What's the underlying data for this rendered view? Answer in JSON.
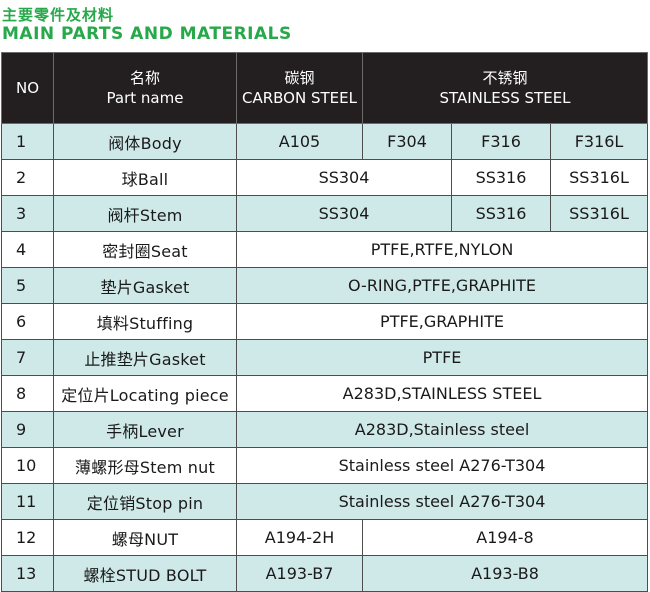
{
  "title_cn": "主要零件及材料",
  "title_en": "MAIN PARTS AND MATERIALS",
  "colors": {
    "title": "#27a84a",
    "header_bg": "#231f20",
    "row_alt": "#cfe9e9",
    "row_plain": "#ffffff"
  },
  "header": {
    "no": "NO",
    "name_cn": "名称",
    "name_en": "Part name",
    "carbon_cn": "碳钢",
    "carbon_en": "CARBON STEEL",
    "stainless_cn": "不锈钢",
    "stainless_en": "STAINLESS STEEL"
  },
  "rows": [
    {
      "no": "1",
      "name": "阀体Body",
      "cells": [
        "A105",
        "F304",
        "F316",
        "F316L"
      ]
    },
    {
      "no": "2",
      "name": "球Ball",
      "cells": [
        "SS304",
        "SS316",
        "SS316L"
      ]
    },
    {
      "no": "3",
      "name": "阀杆Stem",
      "cells": [
        "SS304",
        "SS316",
        "SS316L"
      ]
    },
    {
      "no": "4",
      "name": "密封圈Seat",
      "cells": [
        "PTFE,RTFE,NYLON"
      ]
    },
    {
      "no": "5",
      "name": "垫片Gasket",
      "cells": [
        "O-RING,PTFE,GRAPHITE"
      ]
    },
    {
      "no": "6",
      "name": "填料Stuffing",
      "cells": [
        "PTFE,GRAPHITE"
      ]
    },
    {
      "no": "7",
      "name": "止推垫片Gasket",
      "cells": [
        "PTFE"
      ]
    },
    {
      "no": "8",
      "name": "定位片Locating piece",
      "cells": [
        "A283D,STAINLESS STEEL"
      ]
    },
    {
      "no": "9",
      "name": "手柄Lever",
      "cells": [
        "A283D,Stainless steel"
      ]
    },
    {
      "no": "10",
      "name": "薄螺形母Stem nut",
      "cells": [
        "Stainless steel A276-T304"
      ]
    },
    {
      "no": "11",
      "name": "定位销Stop pin",
      "cells": [
        "Stainless steel A276-T304"
      ]
    },
    {
      "no": "12",
      "name": "螺母NUT",
      "cells": [
        "A194-2H",
        "A194-8"
      ]
    },
    {
      "no": "13",
      "name": "螺栓STUD BOLT",
      "cells": [
        "A193-B7",
        "A193-B8"
      ]
    }
  ]
}
